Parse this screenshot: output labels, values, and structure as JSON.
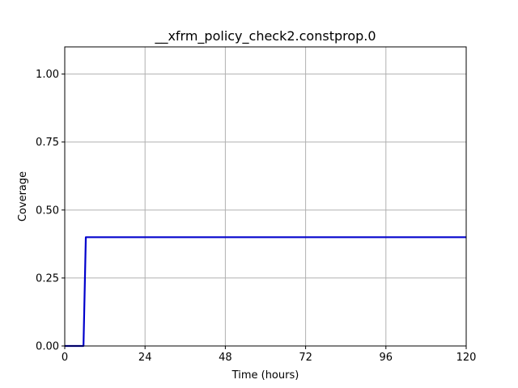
{
  "chart_data": {
    "type": "line",
    "title": "__xfrm_policy_check2.constprop.0",
    "xlabel": "Time (hours)",
    "ylabel": "Coverage",
    "xlim": [
      0,
      120
    ],
    "ylim": [
      0,
      1.1
    ],
    "xticks": [
      0,
      24,
      48,
      72,
      96,
      120
    ],
    "xtick_labels": [
      "0",
      "24",
      "48",
      "72",
      "96",
      "120"
    ],
    "yticks": [
      0,
      0.25,
      0.5,
      0.75,
      1.0
    ],
    "ytick_labels": [
      "0.00",
      "0.25",
      "0.50",
      "0.75",
      "1.00"
    ],
    "grid": true,
    "series": [
      {
        "color": "#0000cc",
        "x": [
          0,
          5.6,
          6.3,
          120
        ],
        "y": [
          0,
          0,
          0.4,
          0.4
        ]
      }
    ]
  }
}
